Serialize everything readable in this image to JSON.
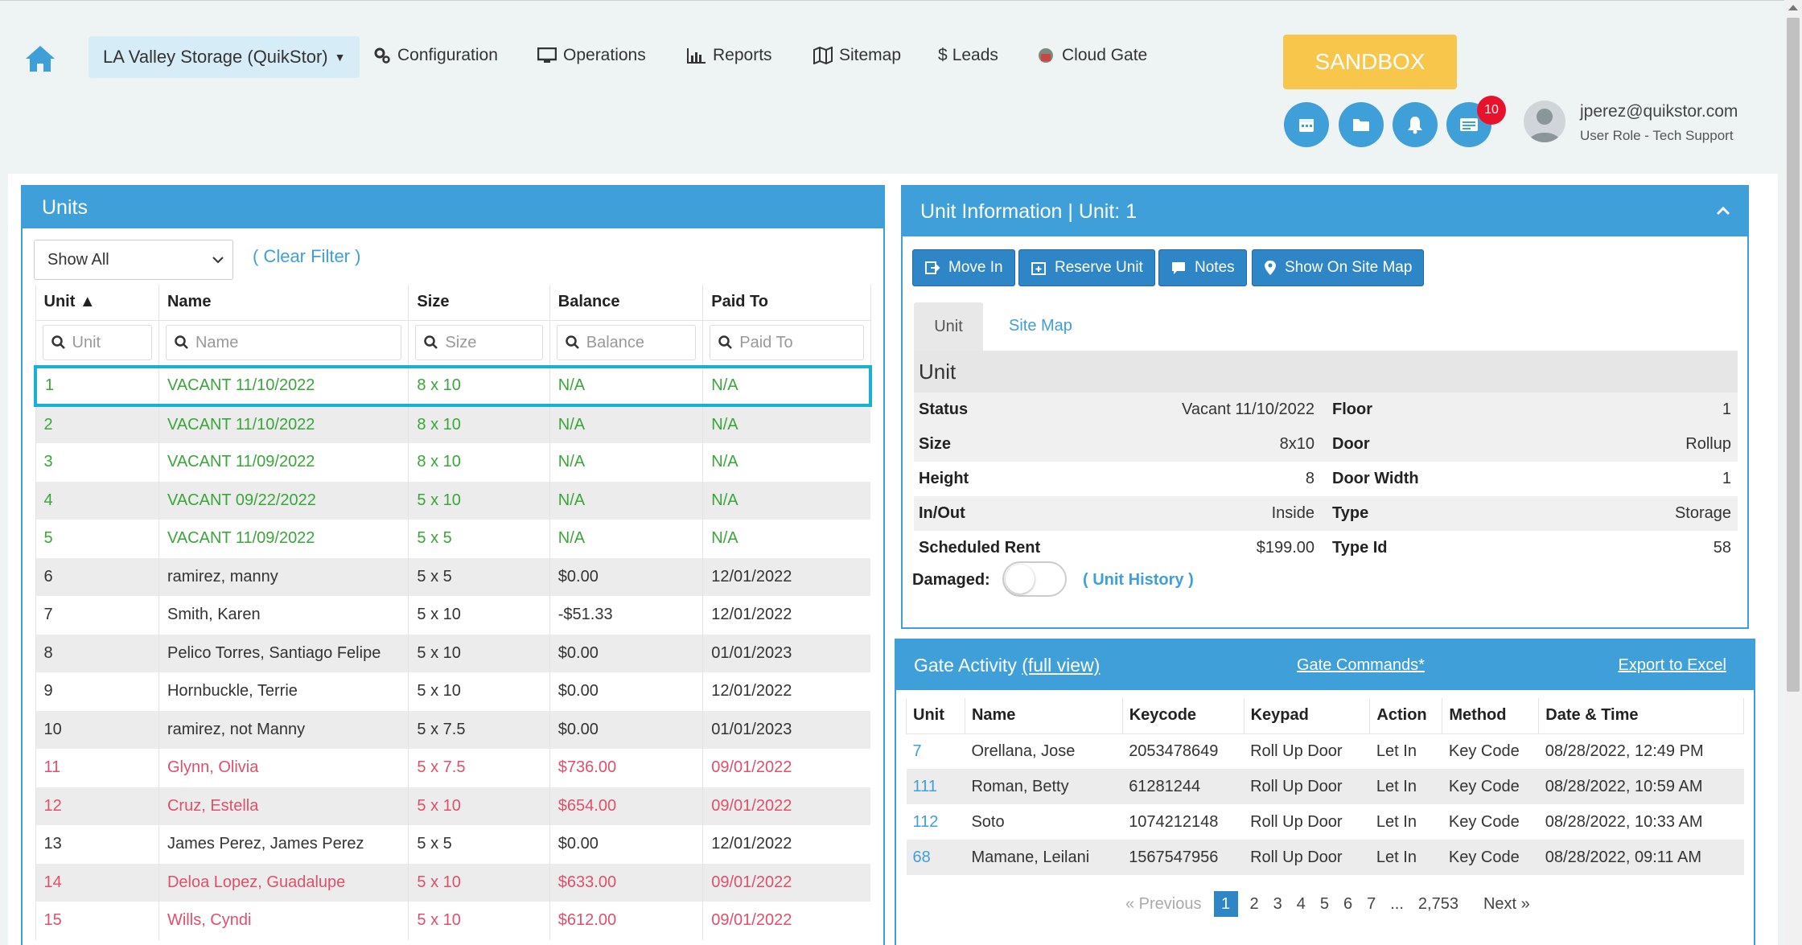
{
  "nav": {
    "facility": "LA Valley Storage (QuikStor)",
    "links": [
      "Configuration",
      "Operations",
      "Reports",
      "Sitemap",
      "Leads",
      "Cloud Gate"
    ],
    "sandbox": "SANDBOX",
    "badge_count": "10",
    "user_email": "jperez@quikstor.com",
    "user_role": "User Role - Tech Support"
  },
  "units": {
    "title": "Units",
    "filter": "Show All",
    "clear_filter": "( Clear Filter )",
    "columns": [
      "Unit ▲",
      "Name",
      "Size",
      "Balance",
      "Paid To"
    ],
    "search_placeholders": [
      "Unit",
      "Name",
      "Size",
      "Balance",
      "Paid To"
    ],
    "rows": [
      {
        "unit": "1",
        "name": "VACANT 11/10/2022",
        "size": "8 x 10",
        "balance": "N/A",
        "paid_to": "N/A",
        "status": "green"
      },
      {
        "unit": "2",
        "name": "VACANT 11/10/2022",
        "size": "8 x 10",
        "balance": "N/A",
        "paid_to": "N/A",
        "status": "green"
      },
      {
        "unit": "3",
        "name": "VACANT 11/09/2022",
        "size": "8 x 10",
        "balance": "N/A",
        "paid_to": "N/A",
        "status": "green"
      },
      {
        "unit": "4",
        "name": "VACANT 09/22/2022",
        "size": "5 x 10",
        "balance": "N/A",
        "paid_to": "N/A",
        "status": "green"
      },
      {
        "unit": "5",
        "name": "VACANT 11/09/2022",
        "size": "5 x 5",
        "balance": "N/A",
        "paid_to": "N/A",
        "status": "green"
      },
      {
        "unit": "6",
        "name": "ramirez, manny",
        "size": "5 x 5",
        "balance": "$0.00",
        "paid_to": "12/01/2022",
        "status": "normal"
      },
      {
        "unit": "7",
        "name": "Smith, Karen",
        "size": "5 x 10",
        "balance": "-$51.33",
        "paid_to": "12/01/2022",
        "status": "normal"
      },
      {
        "unit": "8",
        "name": "Pelico Torres, Santiago Felipe",
        "size": "5 x 10",
        "balance": "$0.00",
        "paid_to": "01/01/2023",
        "status": "normal"
      },
      {
        "unit": "9",
        "name": "Hornbuckle, Terrie",
        "size": "5 x 10",
        "balance": "$0.00",
        "paid_to": "12/01/2022",
        "status": "normal"
      },
      {
        "unit": "10",
        "name": "ramirez, not Manny",
        "size": "5 x 7.5",
        "balance": "$0.00",
        "paid_to": "01/01/2023",
        "status": "normal"
      },
      {
        "unit": "11",
        "name": "Glynn, Olivia",
        "size": "5 x 7.5",
        "balance": "$736.00",
        "paid_to": "09/01/2022",
        "status": "red"
      },
      {
        "unit": "12",
        "name": "Cruz, Estella",
        "size": "5 x 10",
        "balance": "$654.00",
        "paid_to": "09/01/2022",
        "status": "red"
      },
      {
        "unit": "13",
        "name": "James Perez, James Perez",
        "size": "5 x 5",
        "balance": "$0.00",
        "paid_to": "12/01/2022",
        "status": "normal"
      },
      {
        "unit": "14",
        "name": "Deloa Lopez, Guadalupe",
        "size": "5 x 10",
        "balance": "$633.00",
        "paid_to": "09/01/2022",
        "status": "red"
      },
      {
        "unit": "15",
        "name": "Wills, Cyndi",
        "size": "5 x 10",
        "balance": "$612.00",
        "paid_to": "09/01/2022",
        "status": "red"
      }
    ]
  },
  "info": {
    "title": "Unit Information | Unit: 1",
    "buttons": [
      "Move In",
      "Reserve Unit",
      "Notes",
      "Show On Site Map"
    ],
    "tabs": [
      "Unit",
      "Site Map"
    ],
    "section": "Unit",
    "rows": [
      {
        "l1": "Status",
        "v1": "Vacant 11/10/2022",
        "l2": "Floor",
        "v2": "1"
      },
      {
        "l1": "Size",
        "v1": "8x10",
        "l2": "Door",
        "v2": "Rollup"
      },
      {
        "l1": "Height",
        "v1": "8",
        "l2": "Door Width",
        "v2": "1"
      },
      {
        "l1": "In/Out",
        "v1": "Inside",
        "l2": "Type",
        "v2": "Storage"
      },
      {
        "l1": "Scheduled Rent",
        "v1": "$199.00",
        "l2": "Type Id",
        "v2": "58"
      }
    ],
    "damaged_label": "Damaged:",
    "unit_history": "( Unit History )"
  },
  "gate": {
    "title": "Gate Activity",
    "full_view": "(full view)",
    "commands": "Gate Commands*",
    "export": "Export to Excel",
    "columns": [
      "Unit",
      "Name",
      "Keycode",
      "Keypad",
      "Action",
      "Method",
      "Date & Time"
    ],
    "rows": [
      {
        "unit": "7",
        "name": "Orellana, Jose",
        "keycode": "2053478649",
        "keypad": "Roll Up Door",
        "action": "Let In",
        "method": "Key Code",
        "datetime": "08/28/2022, 12:49 PM"
      },
      {
        "unit": "111",
        "name": "Roman, Betty",
        "keycode": "61281244",
        "keypad": "Roll Up Door",
        "action": "Let In",
        "method": "Key Code",
        "datetime": "08/28/2022, 10:59 AM"
      },
      {
        "unit": "112",
        "name": "Soto",
        "keycode": "1074212148",
        "keypad": "Roll Up Door",
        "action": "Let In",
        "method": "Key Code",
        "datetime": "08/28/2022, 10:33 AM"
      },
      {
        "unit": "68",
        "name": "Mamane, Leilani",
        "keycode": "1567547956",
        "keypad": "Roll Up Door",
        "action": "Let In",
        "method": "Key Code",
        "datetime": "08/28/2022, 09:11 AM"
      }
    ],
    "pager": {
      "prev": "« Previous",
      "pages": [
        "1",
        "2",
        "3",
        "4",
        "5",
        "6",
        "7",
        "...",
        "2,753"
      ],
      "next": "Next »"
    }
  },
  "colors": {
    "accent": "#3f9fd8",
    "vacant": "#3aa63a",
    "delinquent": "#e0506a",
    "sandbox": "#f7c64a",
    "badge": "#e8132a"
  }
}
